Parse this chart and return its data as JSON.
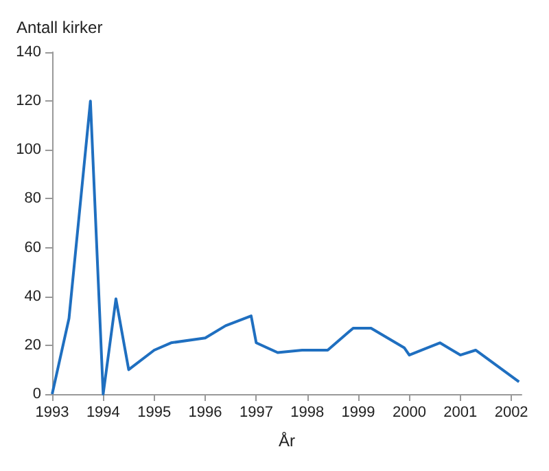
{
  "chart_data": {
    "type": "line",
    "ylabel": "Antall kirker",
    "xlabel": "År",
    "x": [
      1993.0,
      1993.33,
      1993.75,
      1994.0,
      1994.25,
      1994.5,
      1995.0,
      1995.33,
      1996.0,
      1996.4,
      1996.9,
      1997.0,
      1997.42,
      1997.9,
      1998.4,
      1998.9,
      1999.25,
      1999.9,
      2000.0,
      2000.6,
      2001.0,
      2001.3,
      2002.15
    ],
    "series": [
      {
        "color": "#1f6fc0",
        "values": [
          0,
          31,
          120,
          0,
          39,
          10,
          18,
          21,
          23,
          28,
          32,
          21,
          17,
          18,
          18,
          27,
          27,
          19,
          16,
          21,
          16,
          18,
          5
        ]
      }
    ],
    "xlim": [
      1993,
      2002.2
    ],
    "xticks": [
      1993,
      1994,
      1995,
      1996,
      1997,
      1998,
      1999,
      2000,
      2001,
      2002
    ],
    "ylim": [
      0,
      140
    ],
    "yticks": [
      0,
      20,
      40,
      60,
      80,
      100,
      120,
      140
    ],
    "grid": false,
    "marker": "none",
    "line_style": "solid"
  }
}
